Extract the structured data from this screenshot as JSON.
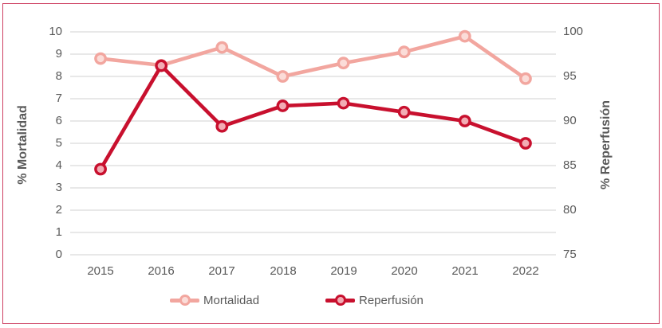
{
  "chart_data": {
    "type": "line",
    "categories": [
      "2015",
      "2016",
      "2017",
      "2018",
      "2019",
      "2020",
      "2021",
      "2022"
    ],
    "series": [
      {
        "name": "Mortalidad",
        "axis": "left",
        "color": "#F2A69F",
        "marker_fill": "#FBDCD8",
        "values": [
          8.8,
          8.5,
          9.3,
          8.0,
          8.6,
          9.1,
          9.8,
          7.9
        ]
      },
      {
        "name": "Reperfusión",
        "axis": "right",
        "color": "#C8102E",
        "marker_fill": "#F2ACB4",
        "values": [
          84.6,
          96.2,
          89.4,
          91.7,
          92.0,
          91.0,
          90.0,
          87.5
        ]
      }
    ],
    "left_axis": {
      "title": "% Mortalidad",
      "min": 0,
      "max": 10,
      "tick_labels": [
        "10",
        "9",
        "8",
        "7",
        "6",
        "5",
        "4",
        "3",
        "2",
        "1",
        "0"
      ]
    },
    "right_axis": {
      "title": "% Reperfusión",
      "min": 75,
      "max": 100,
      "tick_labels": [
        "100",
        "95",
        "90",
        "85",
        "80",
        "75"
      ]
    },
    "grid": true,
    "gridline_color": "#D9D9D9",
    "text_color": "#595959",
    "legend_position": "bottom",
    "frame_border_color": "#CE4163"
  }
}
